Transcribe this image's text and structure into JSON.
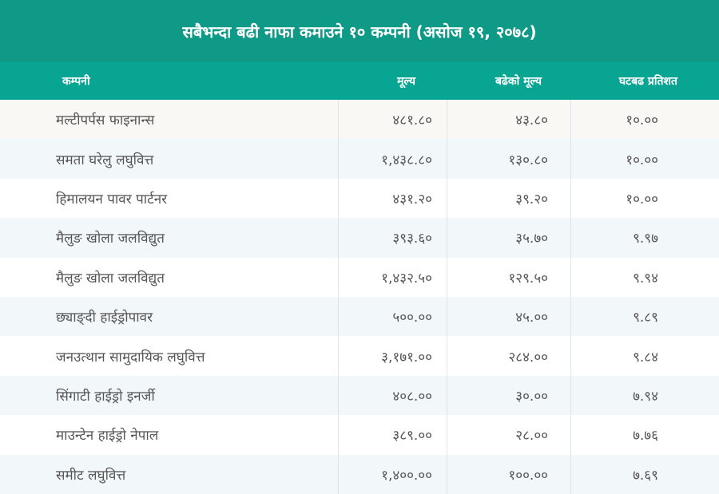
{
  "title": "सबैभन्दा बढी नाफा कमाउने १० कम्पनी (असोज १९, २०७८)",
  "columns": {
    "company": "कम्पनी",
    "price": "मूल्य",
    "increase": "बढेको मूल्य",
    "percent": "घटबढ प्रतिशत"
  },
  "rows": [
    {
      "company": "मल्टीपर्पस फाइनान्स",
      "price": "४८१.८०",
      "increase": "४३.८०",
      "percent": "१०.००"
    },
    {
      "company": "समता घरेलु लघुवित्त",
      "price": "१,४३८.८०",
      "increase": "१३०.८०",
      "percent": "१०.००"
    },
    {
      "company": "हिमालयन पावर पार्टनर",
      "price": "४३१.२०",
      "increase": "३९.२०",
      "percent": "१०.००"
    },
    {
      "company": "मैलुङ खोला जलविद्युत",
      "price": "३९३.६०",
      "increase": "३५.७०",
      "percent": "९.९७"
    },
    {
      "company": "मैलुङ खोला जलविद्युत",
      "price": "१,४३२.५०",
      "increase": "१२९.५०",
      "percent": "९.९४"
    },
    {
      "company": "छ्याङ्दी हाईड्रोपावर",
      "price": "५००.००",
      "increase": "४५.००",
      "percent": "९.८९"
    },
    {
      "company": "जनउत्थान सामुदायिक लघुवित्त",
      "price": "३,१७१.००",
      "increase": "२८४.००",
      "percent": "९.८४"
    },
    {
      "company": "सिंगाटी हाईड्रो इनर्जी",
      "price": "४०८.००",
      "increase": "३०.००",
      "percent": "७.९४"
    },
    {
      "company": "माउन्टेन हाईड्रो नेपाल",
      "price": "३८९.००",
      "increase": "२८.००",
      "percent": "७.७६"
    },
    {
      "company": "समीट लघुवित्त",
      "price": "१,४००.००",
      "increase": "१००.००",
      "percent": "७.६९"
    }
  ]
}
